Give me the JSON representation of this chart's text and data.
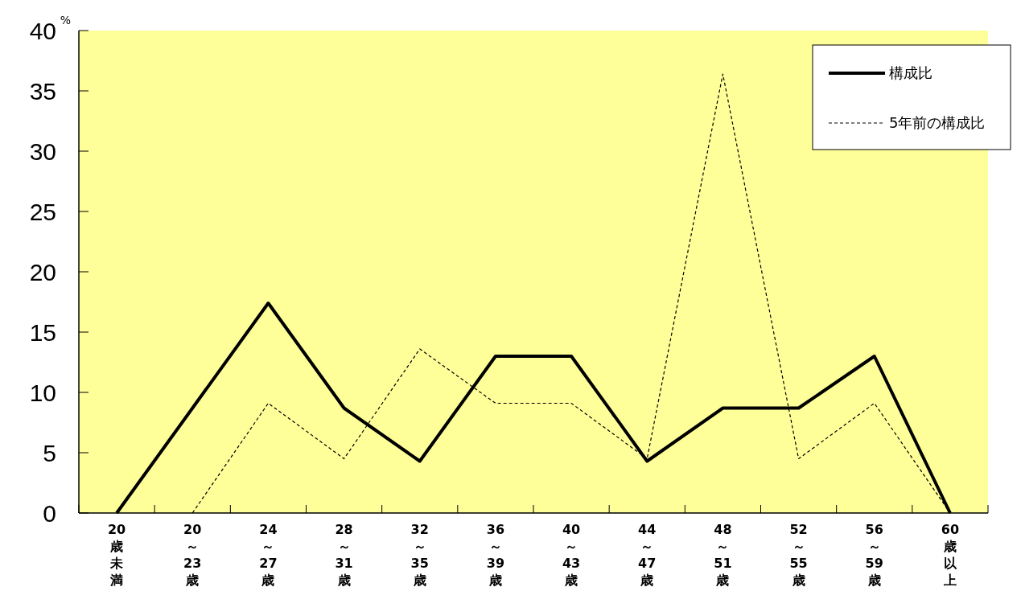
{
  "chart_data": {
    "type": "line",
    "ylabel": "%",
    "categories": [
      "20歳未満",
      "20～23歳",
      "24～27歳",
      "28～31歳",
      "32～35歳",
      "36～39歳",
      "40～43歳",
      "44～47歳",
      "48～51歳",
      "52～55歳",
      "56～59歳",
      "60歳以上"
    ],
    "series": [
      {
        "name": "構成比",
        "color": "#000000",
        "line_style": "solid",
        "values": [
          0,
          8.7,
          17.4,
          8.7,
          4.3,
          13.0,
          13.0,
          4.3,
          8.7,
          8.7,
          13.0,
          0
        ]
      },
      {
        "name": "5年前の構成比",
        "color": "#000000",
        "line_style": "dashed",
        "values": [
          null,
          0,
          9.1,
          4.5,
          13.6,
          9.1,
          9.1,
          4.5,
          36.4,
          4.5,
          9.1,
          0
        ]
      }
    ],
    "ylim": [
      0,
      40
    ],
    "yticks": [
      0,
      5,
      10,
      15,
      20,
      25,
      30,
      35,
      40
    ],
    "grid": false,
    "legend": "top right"
  }
}
